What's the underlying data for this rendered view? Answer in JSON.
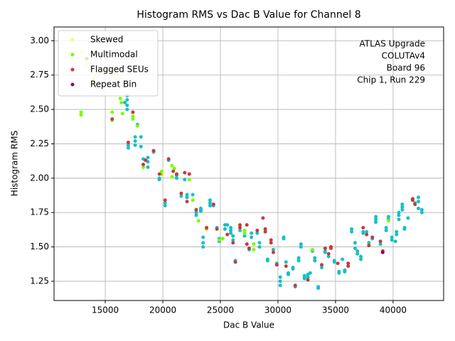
{
  "chart_data": {
    "type": "scatter",
    "title": "Histogram RMS vs Dac B Value for Channel 8",
    "x_label": "Dac B Value",
    "y_label": "Histogram RMS",
    "annotation": [
      "ATLAS Upgrade",
      "COLUTAv4",
      "Board 96",
      "Chip 1, Run 229"
    ],
    "xlim": [
      10550,
      44390
    ],
    "ylim": [
      1.11,
      3.1
    ],
    "xticks": [
      15000,
      20000,
      25000,
      30000,
      35000,
      40000
    ],
    "yticks": [
      {
        "value": 1.25,
        "label": "1.25"
      },
      {
        "value": 1.5,
        "label": "1.50"
      },
      {
        "value": 1.75,
        "label": "1.75"
      },
      {
        "value": 2,
        "label": "2.00"
      },
      {
        "value": 2.25,
        "label": "2.25"
      },
      {
        "value": 2.5,
        "label": "2.50"
      },
      {
        "value": 2.75,
        "label": "2.75"
      },
      {
        "value": 3,
        "label": "3.00"
      }
    ],
    "grid": true,
    "legend": "upper left",
    "series": [
      {
        "color": "#17c0c4",
        "x": [
          16700,
          16900,
          16900,
          16900,
          16900,
          17000,
          17000,
          17600,
          17600,
          17600,
          17800,
          18100,
          18100,
          18300,
          18700,
          18700,
          18700,
          19200,
          19700,
          19700,
          20200,
          20200,
          20500,
          21200,
          21200,
          21600,
          21900,
          22100,
          22100,
          22600,
          22900,
          22900,
          23300,
          23300,
          23300,
          23500,
          23500,
          23500,
          24100,
          24100,
          24100,
          24400,
          24700,
          24900,
          24900,
          25400,
          25400,
          25600,
          25900,
          25900,
          25900,
          26100,
          26100,
          26300,
          26700,
          27100,
          27500,
          27700,
          27700,
          28200,
          28400,
          28400,
          29100,
          29100,
          29600,
          29900,
          30200,
          30200,
          30200,
          30500,
          30500,
          30700,
          30900,
          30900,
          31300,
          31300,
          31500,
          31800,
          31800,
          32000,
          32000,
          32300,
          32300,
          32300,
          32600,
          32600,
          32800,
          33000,
          33200,
          33200,
          33500,
          33500,
          33800,
          34100,
          34100,
          34400,
          34900,
          34900,
          35300,
          35300,
          35600,
          35800,
          35800,
          36400,
          36400,
          36700,
          36700,
          36900,
          36900,
          37200,
          37200,
          37400,
          37400,
          37700,
          37900,
          38200,
          38500,
          38500,
          38500,
          38900,
          39400,
          39400,
          39600,
          39600,
          39900,
          39900,
          40200,
          40300,
          40300,
          40500,
          40500,
          40500,
          40800,
          40800,
          40800,
          41000,
          41000,
          41300,
          41900,
          42200,
          42200,
          42200,
          42500,
          42500
        ],
        "values": [
          2.55,
          2.6,
          2.57,
          2.53,
          2.5,
          2.24,
          2.22,
          2.3,
          2.27,
          2.24,
          2.39,
          2.3,
          2.23,
          2.14,
          2.15,
          2.12,
          2.08,
          2.19,
          2.0,
          1.99,
          1.82,
          1.8,
          2.13,
          2.02,
          2.0,
          1.87,
          1.99,
          1.88,
          1.86,
          1.88,
          1.75,
          1.73,
          1.78,
          1.77,
          1.76,
          1.57,
          1.53,
          1.5,
          1.84,
          1.82,
          1.8,
          1.8,
          1.64,
          1.56,
          1.54,
          1.66,
          1.63,
          1.66,
          1.64,
          1.62,
          1.6,
          1.58,
          1.55,
          1.4,
          1.62,
          1.58,
          1.48,
          1.6,
          1.57,
          1.6,
          1.53,
          1.5,
          1.41,
          1.4,
          1.48,
          1.38,
          1.28,
          1.25,
          1.22,
          1.57,
          1.56,
          1.39,
          1.31,
          1.3,
          1.35,
          1.34,
          1.21,
          1.42,
          1.4,
          1.52,
          1.5,
          1.29,
          1.28,
          1.27,
          1.3,
          1.28,
          1.31,
          1.47,
          1.42,
          1.4,
          1.21,
          1.2,
          1.35,
          1.47,
          1.46,
          1.43,
          1.4,
          1.39,
          1.32,
          1.31,
          1.41,
          1.33,
          1.32,
          1.63,
          1.61,
          1.53,
          1.49,
          1.47,
          1.45,
          1.43,
          1.41,
          1.61,
          1.6,
          1.61,
          1.53,
          1.56,
          1.72,
          1.7,
          1.68,
          1.52,
          1.64,
          1.62,
          1.72,
          1.7,
          1.57,
          1.55,
          1.54,
          1.61,
          1.59,
          1.75,
          1.73,
          1.7,
          1.81,
          1.79,
          1.77,
          1.64,
          1.63,
          1.71,
          1.82,
          1.86,
          1.83,
          1.78,
          1.77,
          1.75
        ]
      },
      {
        "name": "Skewed",
        "color": "#f2ff66",
        "x": [
          13000,
          13200,
          13400,
          13700,
          13900,
          14100,
          14400,
          14700,
          15000,
          15300,
          15600,
          16000,
          16300,
          16600
        ],
        "values": [
          2.92,
          2.86,
          2.83,
          2.8,
          2.76,
          2.73,
          2.78,
          2.77,
          2.79,
          2.76,
          2.74,
          2.79,
          2.72,
          2.67
        ]
      },
      {
        "name": "Multimodal",
        "color": "#7cfc00",
        "x": [
          12900,
          12900,
          14000,
          15600,
          15600,
          16300,
          16400,
          16500,
          17400,
          17400,
          17800,
          18300,
          19900,
          19900,
          20800,
          21000,
          20800,
          22300,
          22600,
          23100,
          23800,
          24900,
          25200,
          27100,
          27100,
          27900,
          27900,
          33000,
          39600
        ],
        "values": [
          2.48,
          2.46,
          2.7,
          2.48,
          2.42,
          2.58,
          2.55,
          2.47,
          2.45,
          2.43,
          2.38,
          2.08,
          2.05,
          2.03,
          2.09,
          2.07,
          2.01,
          1.99,
          1.84,
          1.69,
          1.63,
          1.55,
          1.56,
          1.62,
          1.6,
          1.52,
          1.48,
          1.48,
          1.69
        ]
      },
      {
        "name": "Flagged SEUs",
        "color": "#c83a3a",
        "x": [
          13400,
          15600,
          17000,
          17400,
          18300,
          18500,
          19200,
          19700,
          20200,
          20500,
          20900,
          21200,
          21600,
          21900,
          22100,
          22300,
          22900,
          23800,
          24400,
          24700,
          25600,
          26100,
          26300,
          26700,
          26700,
          27300,
          27300,
          27500,
          28200,
          28700,
          28900,
          28900,
          29400,
          29400,
          29600,
          29900,
          30700,
          31500,
          32600,
          33800,
          34100,
          34400,
          34600,
          34600,
          35200,
          36100,
          36100,
          37400,
          37700,
          37900,
          38200,
          38900,
          39100,
          41700,
          41700,
          41900
        ],
        "values": [
          2.87,
          2.43,
          2.26,
          2.48,
          2.1,
          2.13,
          2.2,
          2.03,
          1.84,
          2.14,
          2.05,
          2.03,
          1.89,
          2.04,
          1.83,
          2.03,
          1.77,
          1.64,
          1.81,
          1.63,
          1.59,
          1.53,
          1.39,
          1.66,
          1.64,
          1.66,
          1.52,
          1.49,
          1.62,
          1.71,
          1.63,
          1.61,
          1.55,
          1.53,
          1.46,
          1.37,
          1.36,
          1.22,
          1.26,
          1.37,
          1.49,
          1.45,
          1.5,
          1.49,
          1.38,
          1.38,
          1.36,
          1.64,
          1.59,
          1.51,
          1.57,
          1.54,
          1.47,
          1.85,
          1.84,
          1.81
        ]
      },
      {
        "name": "Repeat Bin",
        "color": "#800080",
        "x": [
          39100
        ],
        "values": [
          1.46
        ]
      }
    ]
  }
}
